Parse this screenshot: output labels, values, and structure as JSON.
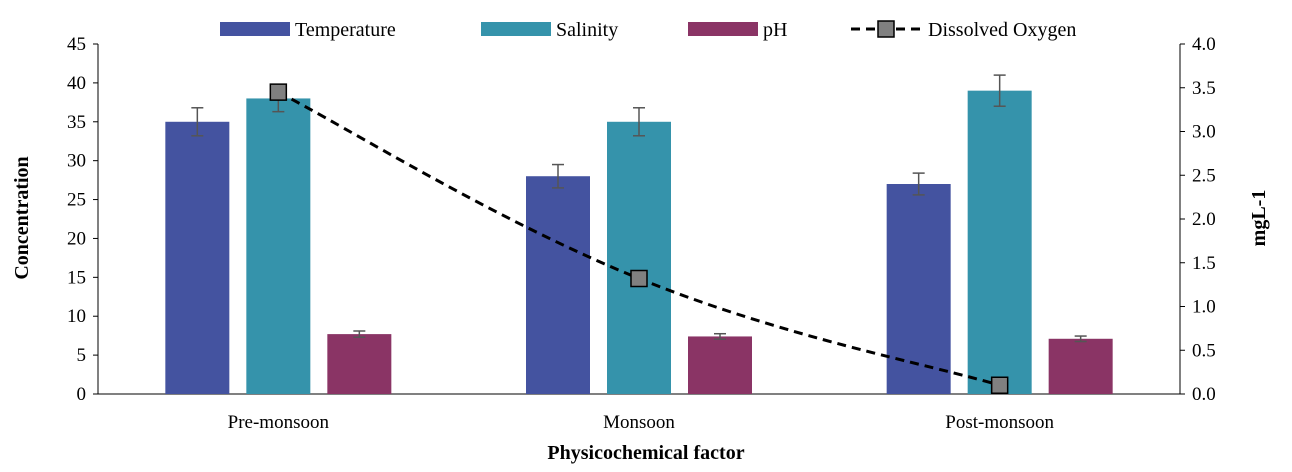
{
  "chart_data": {
    "type": "bar",
    "categories": [
      "Pre-monsoon",
      "Monsoon",
      "Post-monsoon"
    ],
    "series": [
      {
        "name": "Temperature",
        "kind": "bar",
        "axis": "left",
        "color": "#4453A0",
        "values": [
          35,
          28,
          27
        ],
        "errors": [
          1.8,
          1.5,
          1.4
        ]
      },
      {
        "name": "Salinity",
        "kind": "bar",
        "axis": "left",
        "color": "#3593AB",
        "values": [
          38,
          35,
          39
        ],
        "errors": [
          1.7,
          1.8,
          2.0
        ]
      },
      {
        "name": "pH",
        "kind": "bar",
        "axis": "left",
        "color": "#8A3465",
        "values": [
          7.7,
          7.4,
          7.1
        ],
        "errors": [
          0.4,
          0.35,
          0.35
        ]
      },
      {
        "name": "Dissolved Oxygen",
        "kind": "line",
        "axis": "right",
        "color": "#000000",
        "marker_color": "#808080",
        "line_style": "dashed",
        "values": [
          3.45,
          1.32,
          0.1
        ]
      }
    ],
    "xlabel": "Physicochemical factor",
    "ylabel": "Concentration",
    "y2label": "mgL-1",
    "ylim": [
      0,
      45
    ],
    "y2lim": [
      0,
      4.0
    ],
    "yticks": [
      "0",
      "5",
      "10",
      "15",
      "20",
      "25",
      "30",
      "35",
      "40",
      "45"
    ],
    "y2ticks": [
      "0.0",
      "0.5",
      "1.0",
      "1.5",
      "2.0",
      "2.5",
      "3.0",
      "3.5",
      "4.0"
    ],
    "legend_position": "top",
    "grid": false
  }
}
